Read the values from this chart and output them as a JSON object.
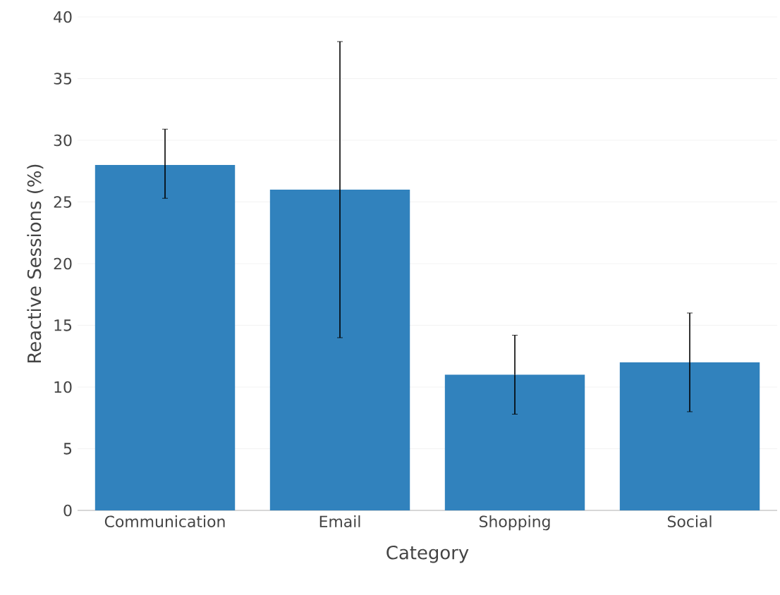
{
  "chart_data": {
    "type": "bar",
    "xlabel": "Category",
    "ylabel": "Reactive Sessions (%)",
    "categories": [
      "Communication",
      "Email",
      "Shopping",
      "Social"
    ],
    "values": [
      28,
      26,
      11,
      12
    ],
    "errors": [
      [
        25.3,
        30.9
      ],
      12,
      3.2,
      4
    ],
    "color": "#3182bd",
    "ylim": [
      0,
      40
    ],
    "yticks": [
      0,
      5,
      10,
      15,
      20,
      25,
      30,
      35,
      40
    ],
    "grid": "y"
  }
}
